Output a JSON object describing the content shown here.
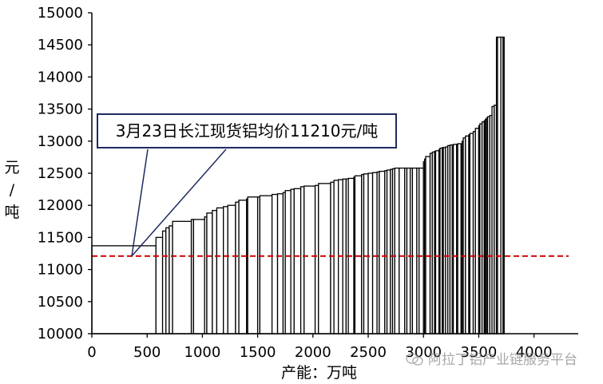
{
  "chart_data": {
    "type": "bar",
    "subtype": "supply-cost-curve",
    "xlabel": "产能：万吨",
    "ylabel": "元/吨",
    "xlim": [
      0,
      4400
    ],
    "ylim": [
      10000,
      15000
    ],
    "x_ticks": [
      "0",
      "500",
      "1000",
      "1500",
      "2000",
      "2500",
      "3000",
      "3500",
      "4000"
    ],
    "y_ticks": [
      "10000",
      "10500",
      "11000",
      "11500",
      "12000",
      "12500",
      "13000",
      "13500",
      "14000",
      "14500",
      "15000"
    ],
    "grid": false,
    "legend": "none",
    "reference_line": {
      "value": 11210,
      "color": "#d00000",
      "style": "dashed"
    },
    "annotation": "3月23日长江现货铝均价11210元/吨",
    "boundaries": [
      0,
      580,
      640,
      670,
      700,
      730,
      900,
      920,
      1020,
      1040,
      1090,
      1130,
      1190,
      1230,
      1300,
      1330,
      1400,
      1410,
      1500,
      1520,
      1630,
      1680,
      1730,
      1750,
      1800,
      1830,
      1890,
      1920,
      2020,
      2050,
      2160,
      2190,
      2230,
      2270,
      2300,
      2320,
      2370,
      2380,
      2440,
      2460,
      2500,
      2540,
      2580,
      2600,
      2650,
      2670,
      2700,
      2720,
      2740,
      2780,
      2830,
      2850,
      2880,
      2900,
      2940,
      2960,
      3000,
      3010,
      3020,
      3060,
      3080,
      3100,
      3110,
      3140,
      3150,
      3170,
      3180,
      3200,
      3220,
      3240,
      3260,
      3270,
      3300,
      3310,
      3340,
      3350,
      3360,
      3380,
      3410,
      3420,
      3450,
      3470,
      3500,
      3510,
      3530,
      3550,
      3560,
      3570,
      3580,
      3600,
      3620,
      3640,
      3660,
      3670,
      3700,
      3720,
      3730
    ],
    "values": [
      11370,
      11500,
      11600,
      11650,
      11680,
      11750,
      11780,
      11780,
      11820,
      11880,
      11920,
      11960,
      11980,
      12000,
      12050,
      12080,
      12100,
      12130,
      12130,
      12150,
      12170,
      12180,
      12200,
      12230,
      12250,
      12260,
      12290,
      12300,
      12310,
      12340,
      12360,
      12390,
      12400,
      12410,
      12410,
      12420,
      12440,
      12460,
      12480,
      12490,
      12500,
      12510,
      12520,
      12530,
      12540,
      12550,
      12560,
      12570,
      12580,
      12580,
      12580,
      12580,
      12580,
      12580,
      12580,
      12580,
      12680,
      12720,
      12760,
      12810,
      12830,
      12840,
      12850,
      12870,
      12890,
      12900,
      12900,
      12910,
      12930,
      12940,
      12940,
      12950,
      12950,
      12960,
      12960,
      13000,
      13050,
      13080,
      13100,
      13120,
      13150,
      13200,
      13240,
      13270,
      13300,
      13320,
      13340,
      13360,
      13380,
      13400,
      13540,
      13560,
      14620,
      14620,
      14620,
      14620
    ]
  },
  "watermark": "阿拉丁铝产业链服务平台"
}
